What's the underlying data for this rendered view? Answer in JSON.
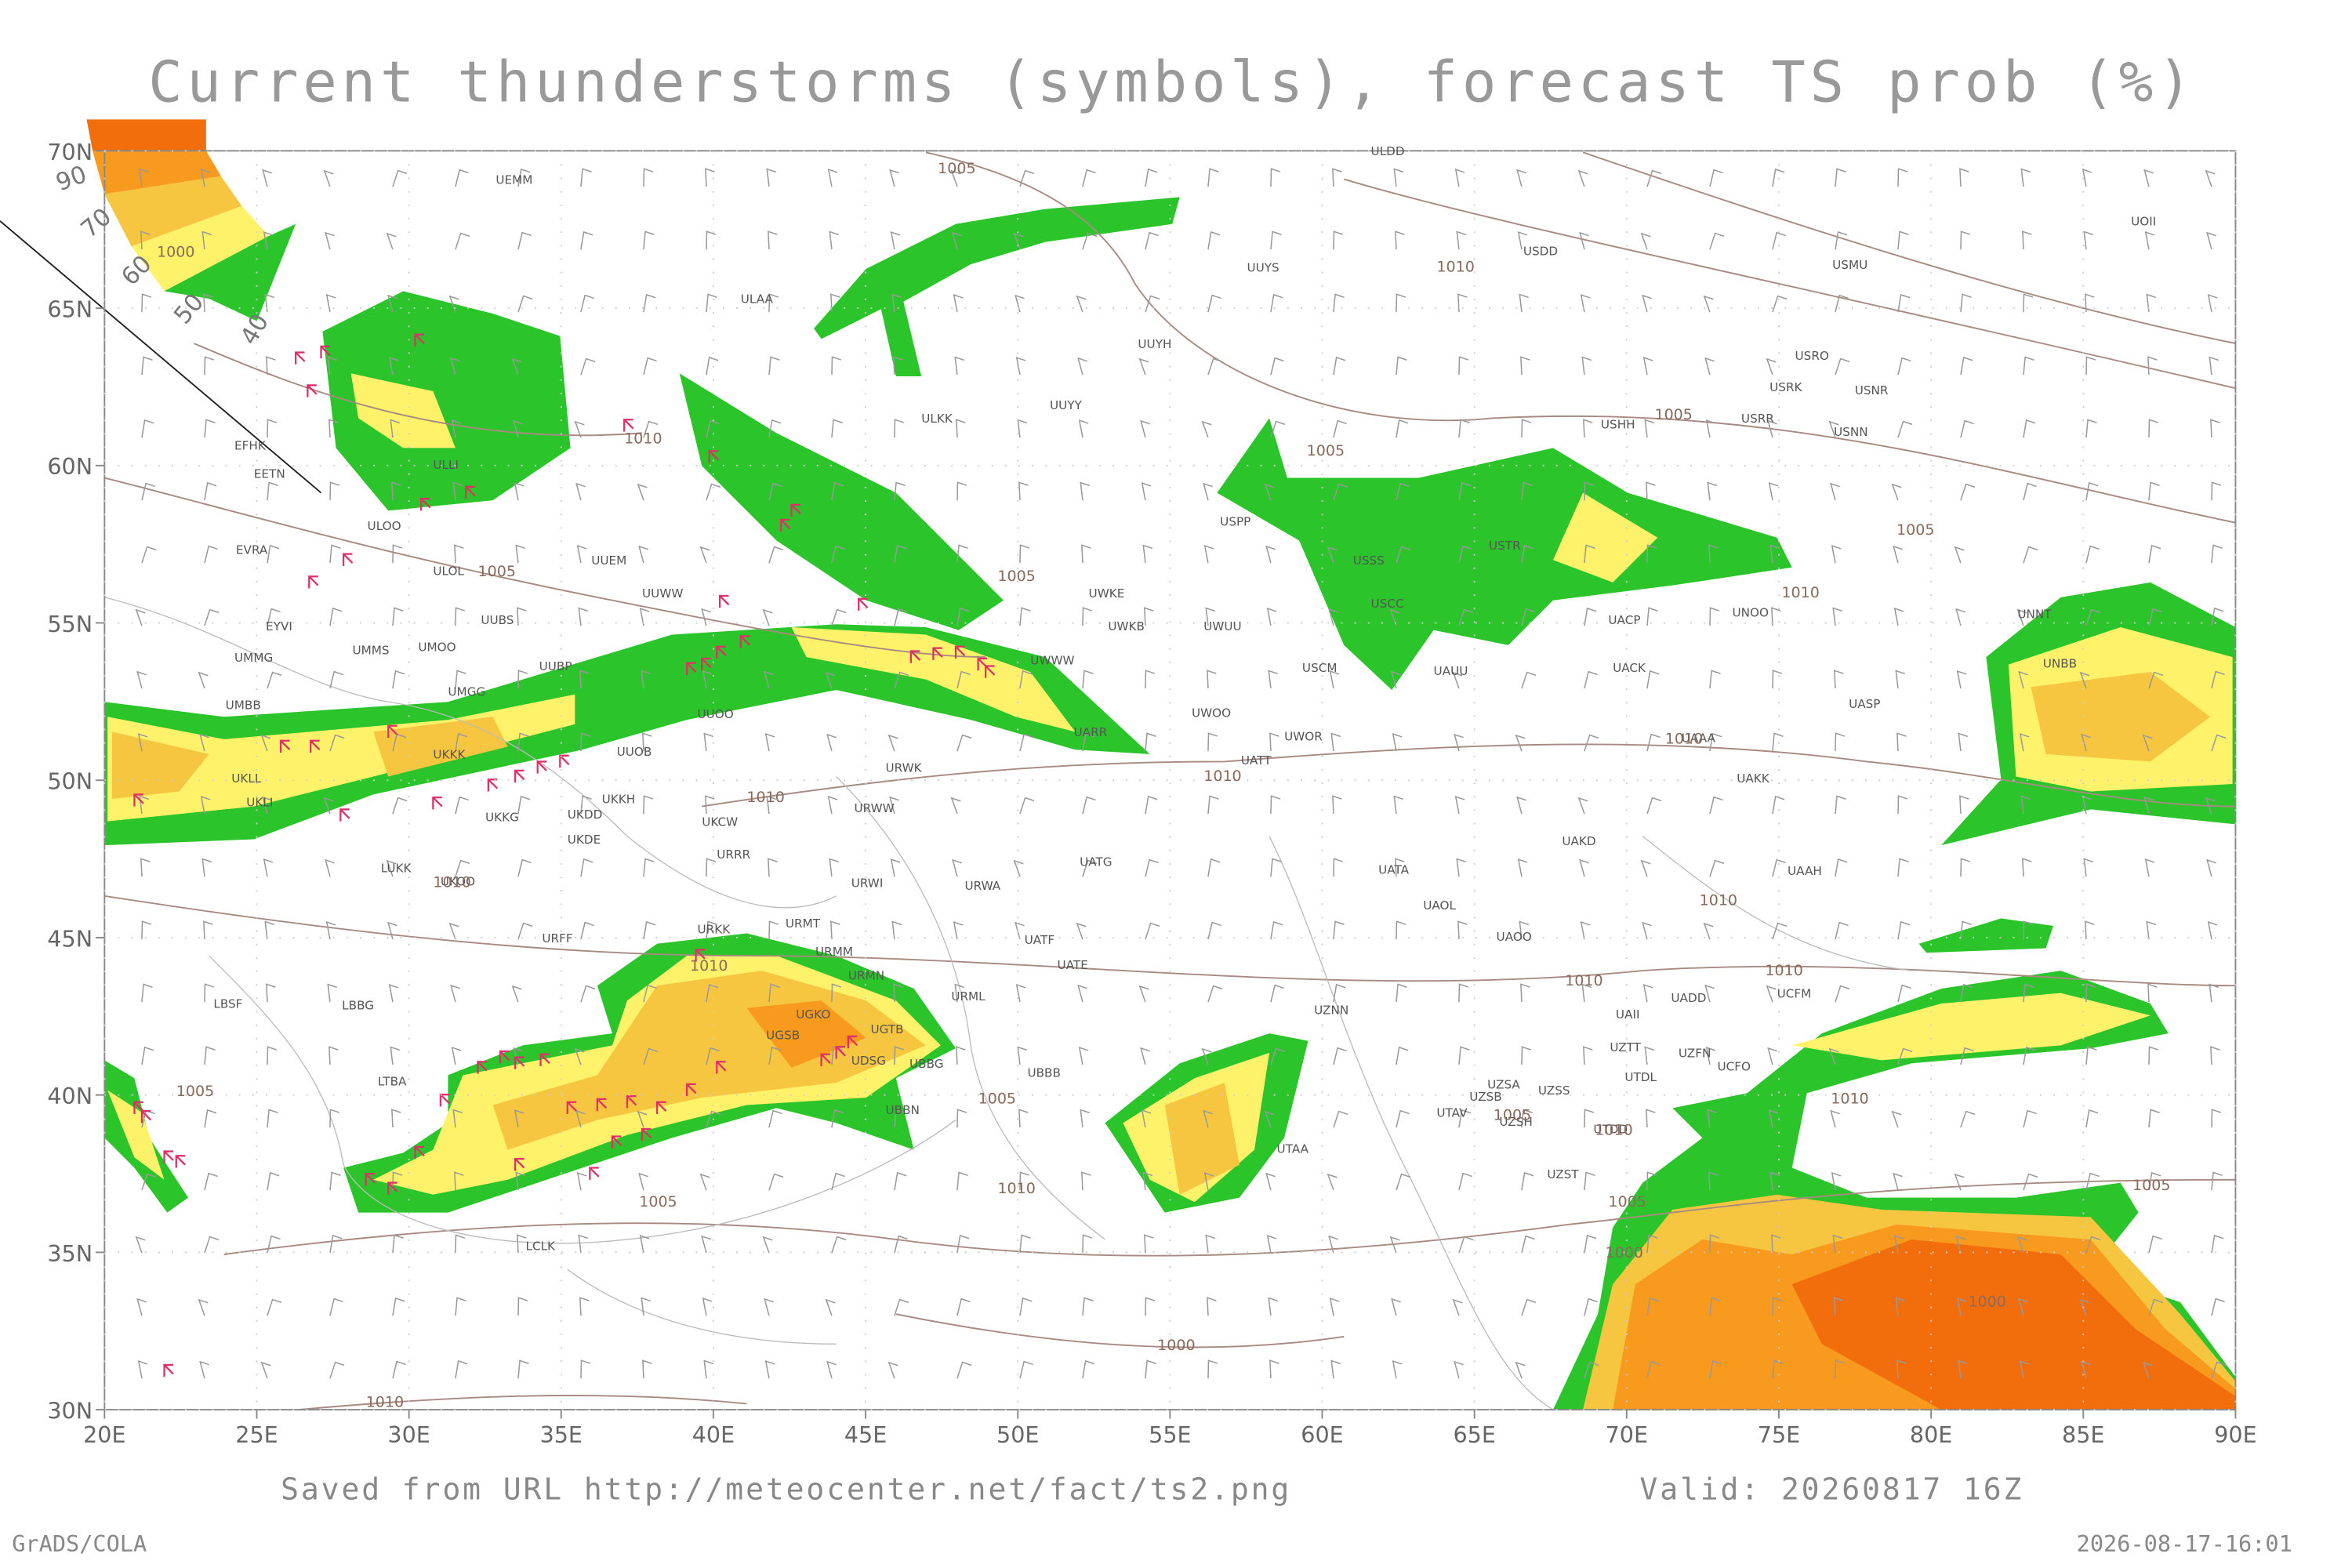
{
  "title": "Current thunderstorms (symbols), forecast TS prob (%)",
  "lat_labels": [
    "70N",
    "65N",
    "60N",
    "55N",
    "50N",
    "45N",
    "40N",
    "35N",
    "30N"
  ],
  "lon_labels": [
    "20E",
    "25E",
    "30E",
    "35E",
    "40E",
    "45E",
    "50E",
    "55E",
    "60E",
    "65E",
    "70E",
    "75E",
    "80E",
    "85E",
    "90E"
  ],
  "legend": {
    "labels": [
      "90",
      "70",
      "60",
      "50",
      "40"
    ]
  },
  "stations": [
    "ULDD",
    "UEMM",
    "UOII",
    "USDD",
    "UUYS",
    "USMU",
    "ULAA",
    "UUYH",
    "USRO",
    "USRK",
    "USNR",
    "UUYY",
    "ULKK",
    "USRR",
    "USHH",
    "USNN",
    "EFHK",
    "EETN",
    "ULLI",
    "USPP",
    "ULOO",
    "EVRA",
    "USTR",
    "UUEM",
    "ULOL",
    "USSS",
    "UWKE",
    "UUWW",
    "USCC",
    "UNOO",
    "UNNT",
    "UUBS",
    "EYVI",
    "UWKB",
    "UWUU",
    "UACP",
    "UMMS",
    "UMOO",
    "UMMG",
    "UUBP",
    "UWWW",
    "USCM",
    "UAUU",
    "UACK",
    "UNBB",
    "UMGG",
    "UMBB",
    "UASP",
    "UUOO",
    "UWOO",
    "UKKK",
    "UUOB",
    "UWOR",
    "UARR",
    "UATT",
    "UAAA",
    "UKLL",
    "UAKK",
    "URWK",
    "UKKH",
    "UKLI",
    "UKDD",
    "UKKG",
    "URWW",
    "UKCW",
    "UKDE",
    "URRR",
    "UAKD",
    "UATG",
    "LUKK",
    "UATA",
    "UAAH",
    "UKOO",
    "URWI",
    "URWA",
    "UAOL",
    "URMT",
    "URFF",
    "URKK",
    "URMM",
    "URMN",
    "UATF",
    "UATE",
    "UAOO",
    "URML",
    "UADD",
    "UCFM",
    "UZNN",
    "UAII",
    "UGKO",
    "UGSB",
    "UGTB",
    "UZTT",
    "UZFN",
    "UDSG",
    "UBBG",
    "UBBB",
    "UCFO",
    "LBSF",
    "LBBG",
    "LTBA",
    "UZSA",
    "UZSB",
    "UZSS",
    "UTDL",
    "UTAV",
    "UBBN",
    "UZSH",
    "UTDD",
    "UTAA",
    "UZST",
    "LCLK"
  ],
  "isobar_labels": [
    "1005",
    "1010",
    "1000",
    "1005",
    "1005",
    "1010",
    "1005",
    "1005",
    "1005",
    "1010",
    "1010",
    "1010",
    "1010",
    "1010",
    "1010",
    "1010",
    "1010",
    "1010",
    "1005",
    "1005",
    "1010",
    "1010",
    "1005",
    "1010",
    "1005",
    "1005",
    "1000",
    "1000",
    "1000",
    "1005",
    "1010"
  ],
  "footer": {
    "source": "Saved from URL http://meteocenter.net/fact/ts2.png",
    "valid": "Valid: 20260817 16Z",
    "software": "GrADS/COLA",
    "timestamp": "2026-08-17-16:01"
  }
}
